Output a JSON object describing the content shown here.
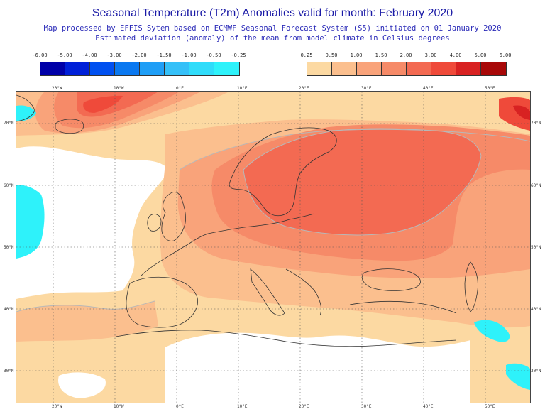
{
  "title": "Seasonal Temperature (T2m) Anomalies valid for month: February 2020",
  "subtitle_1": "Map processed by EFFIS Sytem based on ECMWF Seasonal Forecast System (S5) initiated on 01 January 2020",
  "subtitle_2": "Estimated deviation (anomaly) of the mean from model climate in Celsius degrees",
  "legend_negative": {
    "labels": [
      "-6.00",
      "-5.00",
      "-4.00",
      "-3.00",
      "-2.00",
      "-1.50",
      "-1.00",
      "-0.50",
      "-0.25"
    ],
    "colors": [
      "#0000a8",
      "#0020d8",
      "#0050f0",
      "#0a78f0",
      "#1f9ef6",
      "#35c0f8",
      "#30dcfa",
      "#2ef2fa"
    ]
  },
  "legend_positive": {
    "labels": [
      "0.25",
      "0.50",
      "1.00",
      "1.50",
      "2.00",
      "3.00",
      "4.00",
      "5.00",
      "6.00"
    ],
    "colors": [
      "#fcd9a2",
      "#fbbf8e",
      "#f9a37a",
      "#f68a68",
      "#f36a52",
      "#ef4a3a",
      "#d82222",
      "#a80808"
    ]
  },
  "top_lon_labels": [
    "20°W",
    "10°W",
    "0°E",
    "10°E",
    "20°E",
    "30°E",
    "40°E",
    "50°E"
  ],
  "bottom_lon_labels": [
    "20°W",
    "10°W",
    "0°E",
    "10°E",
    "20°E",
    "30°E",
    "40°E",
    "50°E"
  ],
  "left_lat_labels": [
    "70°N",
    "60°N",
    "50°N",
    "40°N",
    "30°N"
  ],
  "right_lat_labels": [
    "70°N",
    "60°N",
    "50°N",
    "40°N",
    "30°N"
  ],
  "map_colors": {
    "ocean_neutral": "#ffffff",
    "cold_anomaly": "#2ef2fa",
    "a025": "#fcd9a2",
    "a050": "#fbbf8e",
    "a100": "#f9a37a",
    "a150": "#f68a68",
    "a200": "#f36a52",
    "a300": "#ef4a3a",
    "a400": "#d82222",
    "contour": "#b8b8b8",
    "coast": "#333333",
    "grid": "#555555"
  }
}
